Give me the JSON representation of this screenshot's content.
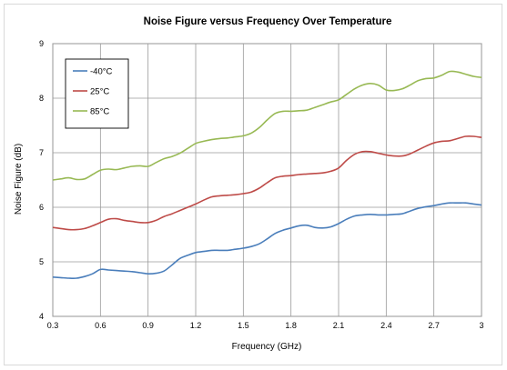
{
  "chart_data": {
    "type": "line",
    "title": "Noise Figure versus Frequency Over Temperature",
    "xlabel": "Frequency (GHz)",
    "ylabel": "Noise Figure (dB)",
    "xlim": [
      0.3,
      3.0
    ],
    "ylim": [
      4,
      9
    ],
    "x_ticks": [
      "0.3",
      "0.6",
      "0.9",
      "1.2",
      "1.5",
      "1.8",
      "2.1",
      "2.4",
      "2.7",
      "3"
    ],
    "y_ticks": [
      "4",
      "5",
      "6",
      "7",
      "8",
      "9"
    ],
    "grid": true,
    "legend_position": "top-left",
    "series": [
      {
        "name": "-40°C",
        "color": "#4a7ebb",
        "x": [
          0.3,
          0.35,
          0.4,
          0.45,
          0.5,
          0.55,
          0.6,
          0.65,
          0.7,
          0.75,
          0.8,
          0.85,
          0.9,
          0.95,
          1.0,
          1.05,
          1.1,
          1.15,
          1.2,
          1.25,
          1.3,
          1.35,
          1.4,
          1.45,
          1.5,
          1.55,
          1.6,
          1.65,
          1.7,
          1.75,
          1.8,
          1.85,
          1.9,
          1.95,
          2.0,
          2.05,
          2.1,
          2.15,
          2.2,
          2.25,
          2.3,
          2.35,
          2.4,
          2.45,
          2.5,
          2.55,
          2.6,
          2.65,
          2.7,
          2.75,
          2.8,
          2.85,
          2.9,
          2.95,
          3.0
        ],
        "y": [
          4.72,
          4.71,
          4.7,
          4.7,
          4.73,
          4.78,
          4.86,
          4.85,
          4.84,
          4.83,
          4.82,
          4.8,
          4.78,
          4.79,
          4.83,
          4.94,
          5.06,
          5.12,
          5.17,
          5.19,
          5.21,
          5.21,
          5.21,
          5.23,
          5.25,
          5.28,
          5.33,
          5.42,
          5.52,
          5.58,
          5.62,
          5.66,
          5.67,
          5.63,
          5.62,
          5.64,
          5.7,
          5.78,
          5.84,
          5.86,
          5.87,
          5.86,
          5.86,
          5.87,
          5.88,
          5.93,
          5.98,
          6.01,
          6.03,
          6.06,
          6.08,
          6.08,
          6.08,
          6.06,
          6.04
        ]
      },
      {
        "name": "25°C",
        "color": "#be4b48",
        "x": [
          0.3,
          0.35,
          0.4,
          0.45,
          0.5,
          0.55,
          0.6,
          0.65,
          0.7,
          0.75,
          0.8,
          0.85,
          0.9,
          0.95,
          1.0,
          1.05,
          1.1,
          1.15,
          1.2,
          1.25,
          1.3,
          1.35,
          1.4,
          1.45,
          1.5,
          1.55,
          1.6,
          1.65,
          1.7,
          1.75,
          1.8,
          1.85,
          1.9,
          1.95,
          2.0,
          2.05,
          2.1,
          2.15,
          2.2,
          2.25,
          2.3,
          2.35,
          2.4,
          2.45,
          2.5,
          2.55,
          2.6,
          2.65,
          2.7,
          2.75,
          2.8,
          2.85,
          2.9,
          2.95,
          3.0
        ],
        "y": [
          5.63,
          5.61,
          5.59,
          5.59,
          5.61,
          5.66,
          5.72,
          5.78,
          5.79,
          5.76,
          5.74,
          5.72,
          5.72,
          5.76,
          5.83,
          5.88,
          5.94,
          6.0,
          6.06,
          6.13,
          6.19,
          6.21,
          6.22,
          6.23,
          6.25,
          6.28,
          6.35,
          6.45,
          6.54,
          6.57,
          6.58,
          6.6,
          6.61,
          6.62,
          6.63,
          6.66,
          6.72,
          6.86,
          6.97,
          7.02,
          7.02,
          6.99,
          6.96,
          6.94,
          6.94,
          6.98,
          7.05,
          7.12,
          7.18,
          7.21,
          7.22,
          7.26,
          7.3,
          7.3,
          7.28
        ]
      },
      {
        "name": "85°C",
        "color": "#98b954",
        "x": [
          0.3,
          0.35,
          0.4,
          0.45,
          0.5,
          0.55,
          0.6,
          0.65,
          0.7,
          0.75,
          0.8,
          0.85,
          0.9,
          0.95,
          1.0,
          1.05,
          1.1,
          1.15,
          1.2,
          1.25,
          1.3,
          1.35,
          1.4,
          1.45,
          1.5,
          1.55,
          1.6,
          1.65,
          1.7,
          1.75,
          1.8,
          1.85,
          1.9,
          1.95,
          2.0,
          2.05,
          2.1,
          2.15,
          2.2,
          2.25,
          2.3,
          2.35,
          2.4,
          2.45,
          2.5,
          2.55,
          2.6,
          2.65,
          2.7,
          2.75,
          2.8,
          2.85,
          2.9,
          2.95,
          3.0
        ],
        "y": [
          6.5,
          6.52,
          6.54,
          6.51,
          6.52,
          6.6,
          6.68,
          6.7,
          6.69,
          6.72,
          6.75,
          6.76,
          6.75,
          6.82,
          6.89,
          6.93,
          6.99,
          7.08,
          7.17,
          7.21,
          7.24,
          7.26,
          7.27,
          7.29,
          7.31,
          7.36,
          7.46,
          7.6,
          7.72,
          7.76,
          7.76,
          7.77,
          7.78,
          7.83,
          7.88,
          7.93,
          7.97,
          8.07,
          8.17,
          8.24,
          8.27,
          8.24,
          8.15,
          8.14,
          8.17,
          8.24,
          8.32,
          8.36,
          8.37,
          8.42,
          8.49,
          8.48,
          8.44,
          8.4,
          8.38
        ]
      }
    ]
  }
}
